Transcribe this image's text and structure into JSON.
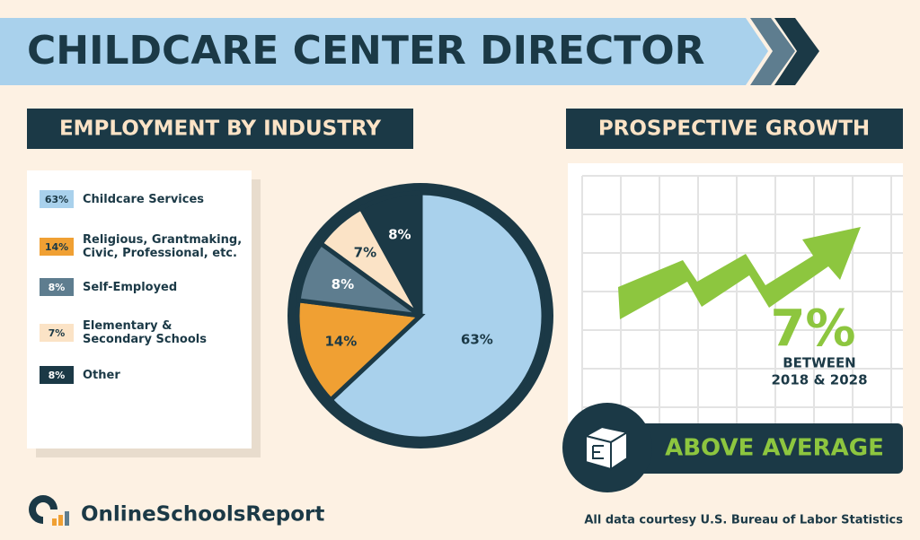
{
  "title": "CHILDCARE CENTER DIRECTOR",
  "chart_data": {
    "type": "pie",
    "title": "EMPLOYMENT BY INDUSTRY",
    "categories": [
      "Childcare Services",
      "Religious, Grantmaking,\nCivic, Professional, etc.",
      "Self-Employed",
      "Elementary &\nSecondary Schools",
      "Other"
    ],
    "values": [
      63,
      14,
      8,
      7,
      8
    ],
    "value_labels": [
      "63%",
      "14%",
      "8%",
      "7%",
      "8%"
    ],
    "colors": [
      "#a9d1ec",
      "#f0a033",
      "#5e7d8f",
      "#fbe3c6",
      "#1b3946"
    ]
  },
  "growth": {
    "title": "PROSPECTIVE GROWTH",
    "value": "7%",
    "caption": [
      "BETWEEN",
      "2018 & 2028"
    ],
    "rating": "ABOVE AVERAGE"
  },
  "footer": {
    "brand": "OnlineSchoolsReport",
    "source": "All data courtesy U.S. Bureau of Labor Statistics"
  }
}
